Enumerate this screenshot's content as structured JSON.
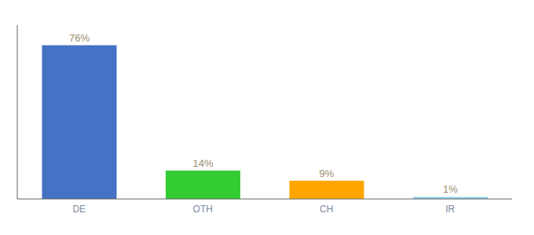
{
  "chart_data": {
    "type": "bar",
    "categories": [
      "DE",
      "OTH",
      "CH",
      "IR"
    ],
    "values": [
      76,
      14,
      9,
      1
    ],
    "value_labels": [
      "76%",
      "14%",
      "9%",
      "1%"
    ],
    "colors": [
      "#4472C4",
      "#33CC33",
      "#FFA500",
      "#87CEEB"
    ],
    "ylim": [
      0,
      86
    ],
    "data_labels": true,
    "tick_labels": "x",
    "grid": false
  }
}
